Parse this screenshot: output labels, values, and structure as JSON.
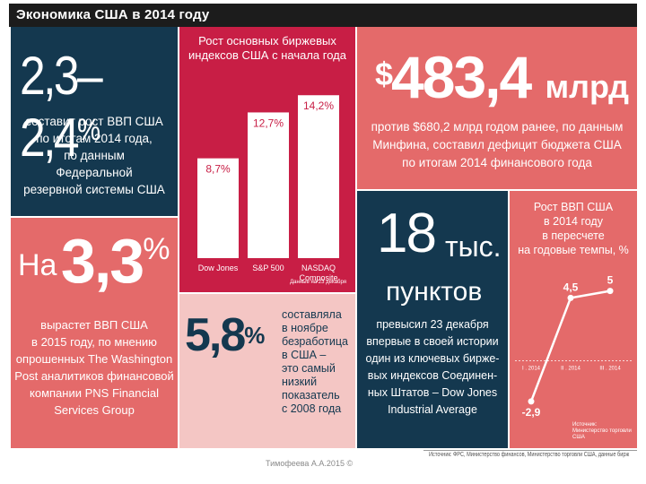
{
  "title": "Экономика США в 2014 году",
  "gdp_growth": {
    "value": "2,3–2,4",
    "unit": "%",
    "lines": [
      "составит рост ВВП США",
      "по итогам 2014 года,",
      "по данным",
      "Федеральной",
      "резервной системы США"
    ]
  },
  "stock_chart": {
    "title_lines": [
      "Рост основных биржевых",
      "индексов США с начала года"
    ],
    "note": "Данные на 23 декабря"
  },
  "deficit": {
    "currency": "$",
    "value": "483,4",
    "unit": "млрд",
    "lines": [
      "против $680,2 млрд годом ранее, по данным",
      "Минфина, составил дефицит бюджета США",
      "по итогам 2014 финансового года"
    ]
  },
  "forecast": {
    "prefix": "На",
    "value": "3,3",
    "unit": "%",
    "lines": [
      "вырастет ВВП США",
      "в 2015 году, по мнению",
      "опрошенных The Washington",
      "Post аналитиков финансовой",
      "компании PNS Financial",
      "Services Group"
    ]
  },
  "unemployment": {
    "value": "5,8",
    "unit": "%",
    "lines": [
      "составляла",
      "в ноябре",
      "безработица",
      "в США –",
      "это самый",
      "низкий",
      "показатель",
      "с 2008 года"
    ]
  },
  "dow": {
    "value": "18",
    "unit1": "тыс.",
    "unit2": "пунктов",
    "lines": [
      "превысил 23 декабря",
      "впервые в своей истории",
      "один из ключевых бирже-",
      "вых индексов Соединен-",
      "ных Штатов – Dow Jones",
      "Industrial Average"
    ]
  },
  "gdp_quarterly": {
    "title_lines": [
      "Рост ВВП США",
      "в 2014 году",
      "в пересчете",
      "на годовые темпы, %"
    ],
    "note_lines": [
      "Источник:",
      "Министерство торговли США"
    ]
  },
  "source": "Источник: ФРС, Министерство финансов, Министерство торговли США, данные бирж",
  "credit": "Тимофеева А.А.2015 ©",
  "colors": {
    "navy": "#14384f",
    "salmon": "#e46a6a",
    "crimson": "#c81e45",
    "rose": "#f4c6c4"
  },
  "chart_data": [
    {
      "type": "bar",
      "categories": [
        "Dow Jones",
        "S&P 500",
        "NASDAQ Composite"
      ],
      "values": [
        8.7,
        12.7,
        14.2
      ],
      "value_labels": [
        "8,7%",
        "12,7%",
        "14,2%"
      ],
      "ylim": [
        0,
        15
      ],
      "title": "Рост основных биржевых индексов США с начала года"
    },
    {
      "type": "line",
      "categories": [
        "I . 2014",
        "II . 2014",
        "III . 2014"
      ],
      "values": [
        -2.9,
        4.5,
        5
      ],
      "value_labels": [
        "-2,9",
        "4,5",
        "5"
      ],
      "ylim": [
        -4,
        6
      ],
      "title": "Рост ВВП США в 2014 году в пересчете на годовые темпы, %"
    }
  ]
}
